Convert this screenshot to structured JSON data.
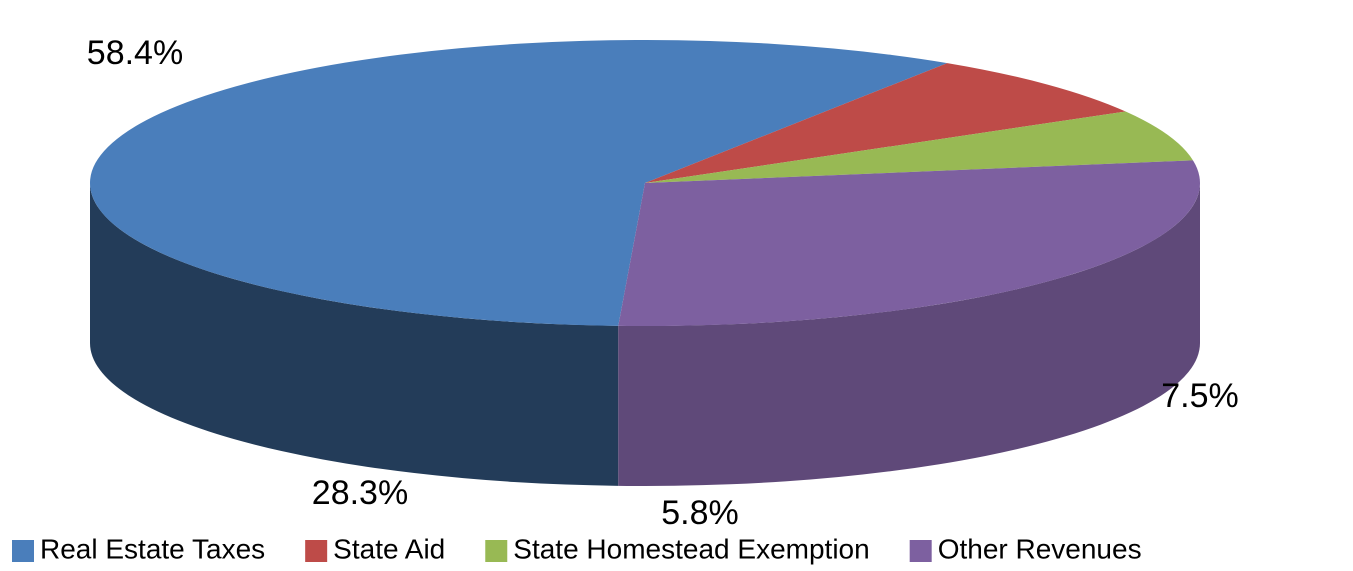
{
  "chart_data": {
    "type": "pie",
    "categories": [
      "Real Estate Taxes",
      "State Aid",
      "State Homestead Exemption",
      "Other Revenues"
    ],
    "values": [
      58.4,
      7.5,
      5.8,
      28.3
    ],
    "value_labels": [
      "58.4%",
      "7.5%",
      "5.8%",
      "28.3%"
    ],
    "colors": [
      "#4a7ebb",
      "#be4b48",
      "#98b954",
      "#7d60a0"
    ],
    "legend": "bottom"
  }
}
